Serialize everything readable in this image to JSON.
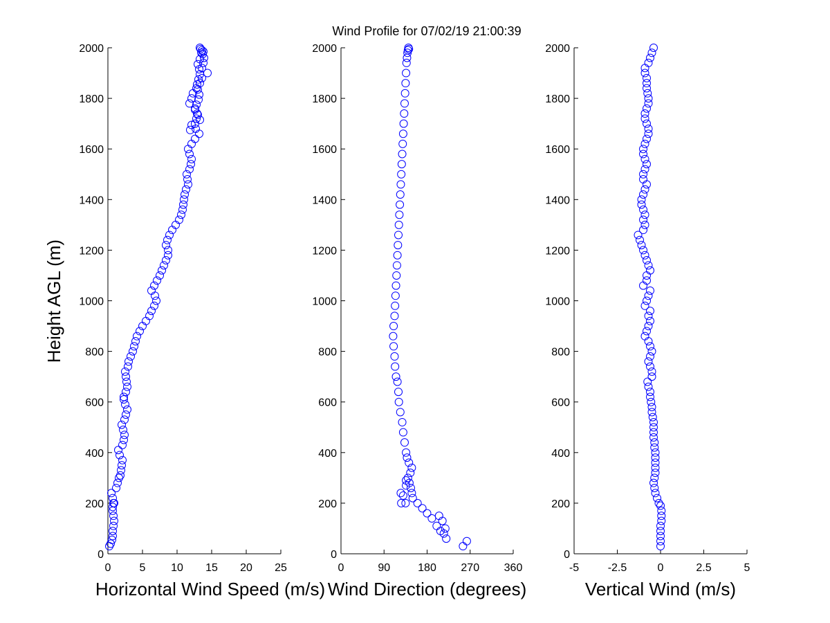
{
  "title": "Wind Profile for  07/02/19 21:00:39",
  "colors": {
    "marker": "#0000ff",
    "axis": "#000000",
    "background": "#ffffff"
  },
  "chart_data": [
    {
      "type": "scatter",
      "xlabel": "Horizontal Wind Speed (m/s)",
      "ylabel": "Height AGL (m)",
      "xlim": [
        0,
        25
      ],
      "ylim": [
        0,
        2000
      ],
      "xticks": [
        "0",
        "5",
        "10",
        "15",
        "20",
        "25"
      ],
      "yticks": [
        "0",
        "200",
        "400",
        "600",
        "800",
        "1000",
        "1200",
        "1400",
        "1600",
        "1800",
        "2000"
      ],
      "grid": false,
      "series": [
        {
          "x": [
            0.2,
            0.4,
            0.6,
            0.7,
            0.7,
            0.8,
            0.9,
            0.8,
            0.7,
            0.7,
            0.8,
            0.9,
            0.7,
            0.5,
            1.2,
            1.4,
            1.6,
            1.8,
            1.9,
            2.0,
            2.1,
            1.7,
            1.5,
            2.1,
            2.3,
            2.4,
            2.2,
            2.0,
            2.4,
            2.6,
            2.8,
            2.5,
            2.3,
            2.3,
            2.6,
            2.8,
            2.7,
            2.6,
            2.5,
            2.9,
            3.0,
            3.3,
            3.6,
            3.8,
            4.0,
            4.2,
            4.6,
            5.0,
            5.5,
            6.0,
            6.3,
            6.7,
            7.0,
            6.8,
            6.3,
            6.7,
            7.1,
            7.5,
            7.8,
            8.1,
            8.4,
            8.7,
            8.7,
            8.4,
            8.6,
            8.9,
            9.3,
            9.8,
            10.3,
            10.6,
            10.8,
            10.9,
            11.0,
            11.1,
            11.3,
            11.6,
            11.5,
            11.4,
            11.8,
            12.0,
            12.1,
            11.8,
            11.6,
            12.1,
            12.6,
            13.2,
            12.7,
            12.6,
            12.8,
            12.9,
            12.6,
            11.8,
            12.1,
            12.3,
            12.8,
            13.3,
            13.6,
            14.4,
            13.6,
            13.8,
            13.9,
            13.5,
            13.3,
            13.4,
            13.6,
            13.8,
            13.7,
            13.3,
            13.0,
            13.2,
            13.3,
            13.1,
            12.9,
            13.0,
            13.2,
            13.1,
            12.8,
            12.6,
            13.0,
            13.3,
            12.1,
            11.9
          ],
          "y": [
            30,
            40,
            55,
            70,
            90,
            110,
            130,
            150,
            170,
            185,
            200,
            200,
            220,
            240,
            260,
            280,
            300,
            310,
            330,
            350,
            370,
            390,
            410,
            430,
            450,
            470,
            490,
            510,
            530,
            550,
            570,
            590,
            610,
            620,
            640,
            660,
            680,
            700,
            720,
            740,
            760,
            780,
            800,
            820,
            840,
            860,
            880,
            900,
            920,
            940,
            960,
            980,
            1000,
            1020,
            1040,
            1060,
            1080,
            1100,
            1120,
            1140,
            1160,
            1180,
            1200,
            1220,
            1240,
            1260,
            1280,
            1300,
            1320,
            1340,
            1360,
            1380,
            1400,
            1420,
            1440,
            1460,
            1480,
            1500,
            1520,
            1540,
            1560,
            1580,
            1600,
            1620,
            1640,
            1660,
            1680,
            1700,
            1720,
            1740,
            1760,
            1780,
            1800,
            1820,
            1840,
            1860,
            1880,
            1900,
            1920,
            1940,
            1960,
            1980,
            2000,
            1995,
            1990,
            1985,
            1975,
            1955,
            1935,
            1915,
            1895,
            1875,
            1855,
            1835,
            1815,
            1795,
            1775,
            1755,
            1735,
            1715,
            1695,
            1675
          ]
        }
      ]
    },
    {
      "type": "scatter",
      "xlabel": "Wind Direction (degrees)",
      "xlim": [
        0,
        360
      ],
      "ylim": [
        0,
        2000
      ],
      "xticks": [
        "0",
        "90",
        "180",
        "270",
        "360"
      ],
      "yticks": [
        "0",
        "200",
        "400",
        "600",
        "800",
        "1000",
        "1200",
        "1400",
        "1600",
        "1800",
        "2000"
      ],
      "grid": false,
      "series": [
        {
          "x": [
            255,
            263,
            220,
            215,
            208,
            218,
            200,
            212,
            190,
            205,
            180,
            170,
            160,
            150,
            148,
            146,
            143,
            140,
            145,
            148,
            142,
            138,
            136,
            133,
            130,
            128,
            124,
            121,
            120,
            118,
            115,
            113,
            112,
            110,
            109,
            110,
            112,
            113,
            114,
            115,
            116,
            117,
            118,
            119,
            120,
            121,
            122,
            123,
            124,
            125,
            126,
            127,
            128,
            129,
            130,
            131,
            132,
            133,
            134,
            135,
            136,
            137,
            138,
            139,
            140,
            141,
            142,
            135,
            126,
            136,
            136,
            130,
            125
          ],
          "y": [
            30,
            50,
            60,
            80,
            90,
            100,
            110,
            130,
            140,
            150,
            160,
            180,
            200,
            220,
            240,
            260,
            280,
            300,
            320,
            340,
            360,
            380,
            400,
            440,
            480,
            520,
            560,
            600,
            640,
            680,
            700,
            740,
            780,
            820,
            860,
            900,
            940,
            980,
            1020,
            1060,
            1100,
            1140,
            1180,
            1220,
            1260,
            1300,
            1340,
            1380,
            1420,
            1460,
            1500,
            1540,
            1580,
            1620,
            1660,
            1700,
            1740,
            1780,
            1820,
            1860,
            1900,
            1940,
            1960,
            1980,
            1990,
            2000,
            1995,
            200,
            200,
            290,
            270,
            230,
            240
          ]
        }
      ]
    },
    {
      "type": "scatter",
      "xlabel": "Vertical Wind (m/s)",
      "xlim": [
        -5,
        5
      ],
      "ylim": [
        0,
        2000
      ],
      "xticks": [
        "-5",
        "-2.5",
        "0",
        "2.5",
        "5"
      ],
      "yticks": [
        "0",
        "200",
        "400",
        "600",
        "800",
        "1000",
        "1200",
        "1400",
        "1600",
        "1800",
        "2000"
      ],
      "grid": false,
      "series": [
        {
          "x": [
            0.0,
            0.0,
            0.0,
            0.0,
            0.0,
            0.05,
            0.05,
            0.05,
            0.0,
            -0.1,
            -0.2,
            -0.3,
            -0.35,
            -0.4,
            -0.35,
            -0.3,
            -0.3,
            -0.3,
            -0.3,
            -0.3,
            -0.35,
            -0.35,
            -0.4,
            -0.4,
            -0.4,
            -0.4,
            -0.45,
            -0.5,
            -0.5,
            -0.55,
            -0.6,
            -0.6,
            -0.7,
            -0.75,
            -0.5,
            -0.5,
            -0.6,
            -0.7,
            -0.6,
            -0.5,
            -0.6,
            -0.7,
            -0.9,
            -0.8,
            -0.7,
            -0.6,
            -0.7,
            -0.6,
            -0.9,
            -0.8,
            -0.7,
            -0.6,
            -1.0,
            -0.8,
            -0.8,
            -0.6,
            -0.7,
            -0.8,
            -0.9,
            -1.0,
            -1.1,
            -1.2,
            -1.3,
            -1.0,
            -0.9,
            -1.0,
            -0.9,
            -1.0,
            -1.1,
            -1.1,
            -1.0,
            -0.9,
            -0.8,
            -1.0,
            -1.0,
            -0.9,
            -0.8,
            -0.9,
            -1.0,
            -1.0,
            -0.9,
            -0.8,
            -0.7,
            -0.7,
            -0.8,
            -0.9,
            -0.9,
            -0.8,
            -0.7,
            -0.7,
            -0.75,
            -0.8,
            -0.8,
            -0.8,
            -0.9,
            -0.9,
            -0.7,
            -0.6,
            -0.5,
            -0.4
          ],
          "y": [
            30,
            50,
            70,
            90,
            110,
            130,
            150,
            170,
            190,
            200,
            220,
            240,
            260,
            280,
            300,
            320,
            340,
            360,
            380,
            400,
            420,
            440,
            460,
            480,
            500,
            520,
            540,
            560,
            580,
            600,
            620,
            640,
            660,
            680,
            700,
            720,
            740,
            760,
            780,
            800,
            820,
            840,
            860,
            880,
            900,
            920,
            940,
            960,
            980,
            1000,
            1020,
            1040,
            1060,
            1080,
            1100,
            1120,
            1140,
            1160,
            1180,
            1200,
            1220,
            1240,
            1260,
            1280,
            1300,
            1320,
            1340,
            1360,
            1380,
            1400,
            1420,
            1440,
            1460,
            1480,
            1500,
            1520,
            1540,
            1560,
            1580,
            1600,
            1620,
            1640,
            1660,
            1680,
            1700,
            1720,
            1740,
            1760,
            1780,
            1800,
            1820,
            1840,
            1860,
            1880,
            1900,
            1920,
            1940,
            1960,
            1980,
            2000
          ]
        }
      ]
    }
  ]
}
